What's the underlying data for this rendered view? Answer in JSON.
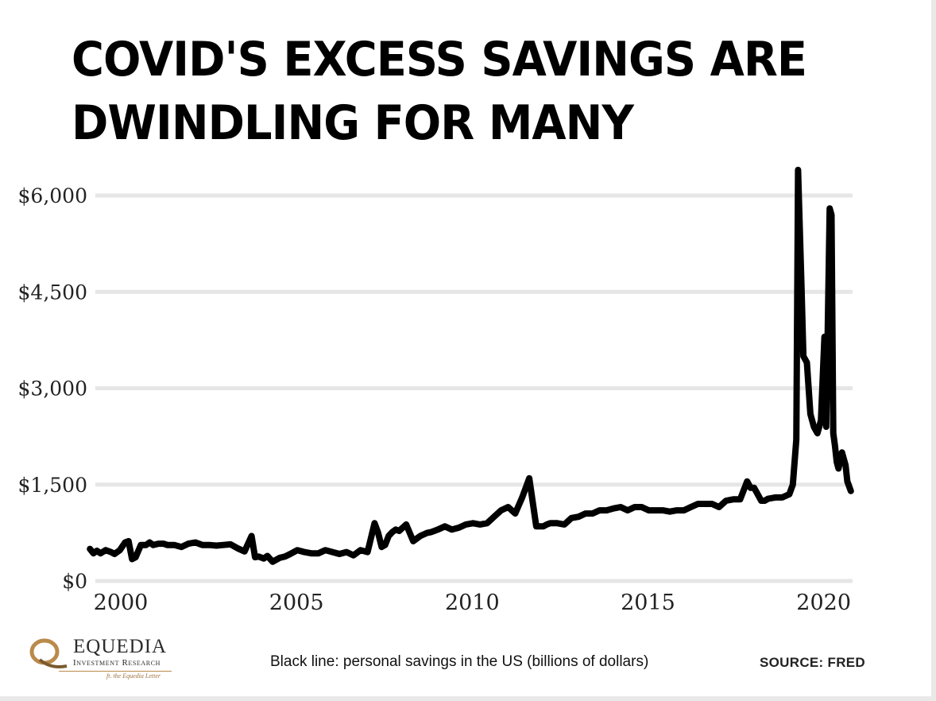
{
  "title": {
    "line1": "COVID'S EXCESS SAVINGS ARE",
    "line2": "DWINDLING FOR MANY"
  },
  "caption": "Black line: personal savings in the US (billions of dollars)",
  "source": "SOURCE:  FRED",
  "logo": {
    "name": "EQUEDIA",
    "subtitle": "Investment Research",
    "tagline": "ft. the Equedia Letter",
    "accent_color": "#b98a4a"
  },
  "chart_data": {
    "type": "line",
    "title": "COVID'S EXCESS SAVINGS ARE DWINDLING FOR MANY",
    "xlabel": "",
    "ylabel": "",
    "xlim": [
      2000,
      2021.5
    ],
    "ylim": [
      0,
      6000
    ],
    "x_ticks": [
      2000,
      2005,
      2010,
      2015,
      2020
    ],
    "x_tick_labels": [
      "2000",
      "2005",
      "2010",
      "2015",
      "2020"
    ],
    "y_ticks": [
      0,
      1500,
      3000,
      4500,
      6000
    ],
    "y_tick_labels": [
      "$0",
      "$1,500",
      "$3,000",
      "$4,500",
      "$6,000"
    ],
    "grid": "horizontal",
    "line_color": "#000000",
    "grid_color": "#e6e6e6",
    "series": [
      {
        "name": "",
        "x": [
          1999.8,
          1999.9,
          2000.0,
          2000.1,
          2000.25,
          2000.4,
          2000.5,
          2000.65,
          2000.8,
          2000.9,
          2001.0,
          2001.1,
          2001.25,
          2001.4,
          2001.5,
          2001.6,
          2001.75,
          2001.9,
          2002.0,
          2002.2,
          2002.4,
          2002.6,
          2002.8,
          2003.0,
          2003.2,
          2003.4,
          2003.6,
          2003.8,
          2004.0,
          2004.2,
          2004.4,
          2004.5,
          2004.6,
          2004.75,
          2004.85,
          2005.0,
          2005.2,
          2005.35,
          2005.5,
          2005.7,
          2005.9,
          2006.1,
          2006.3,
          2006.5,
          2006.7,
          2006.9,
          2007.1,
          2007.3,
          2007.5,
          2007.7,
          2007.9,
          2008.0,
          2008.1,
          2008.2,
          2008.3,
          2008.4,
          2008.5,
          2008.6,
          2008.8,
          2009.0,
          2009.2,
          2009.4,
          2009.5,
          2009.6,
          2009.7,
          2009.9,
          2010.1,
          2010.3,
          2010.5,
          2010.7,
          2010.9,
          2011.1,
          2011.3,
          2011.5,
          2011.7,
          2011.9,
          2012.1,
          2012.3,
          2012.5,
          2012.7,
          2012.8,
          2012.9,
          2013.0,
          2013.1,
          2013.3,
          2013.5,
          2013.7,
          2013.9,
          2014.1,
          2014.3,
          2014.5,
          2014.7,
          2014.9,
          2015.1,
          2015.3,
          2015.5,
          2015.7,
          2015.9,
          2016.1,
          2016.3,
          2016.5,
          2016.7,
          2016.9,
          2017.1,
          2017.3,
          2017.5,
          2017.7,
          2017.9,
          2018.1,
          2018.3,
          2018.5,
          2018.6,
          2018.7,
          2018.8,
          2018.9,
          2019.0,
          2019.1,
          2019.3,
          2019.5,
          2019.7,
          2019.8,
          2019.9,
          2019.95,
          2020.05,
          2020.1,
          2020.2,
          2020.3,
          2020.4,
          2020.5,
          2020.6,
          2020.7,
          2020.75,
          2020.85,
          2020.9,
          2020.95,
          2021.0,
          2021.05,
          2021.1,
          2021.2,
          2021.3,
          2021.35,
          2021.45
        ],
        "values": [
          500,
          430,
          470,
          430,
          480,
          450,
          420,
          480,
          600,
          620,
          340,
          370,
          560,
          560,
          600,
          560,
          580,
          580,
          560,
          560,
          530,
          580,
          600,
          560,
          560,
          550,
          560,
          570,
          510,
          460,
          700,
          370,
          380,
          350,
          390,
          300,
          360,
          380,
          420,
          480,
          450,
          430,
          430,
          480,
          450,
          420,
          450,
          400,
          480,
          450,
          900,
          750,
          530,
          560,
          700,
          760,
          800,
          780,
          880,
          620,
          700,
          750,
          760,
          780,
          800,
          850,
          800,
          830,
          880,
          900,
          880,
          900,
          1000,
          1100,
          1150,
          1050,
          1300,
          1600,
          850,
          850,
          880,
          900,
          900,
          900,
          880,
          980,
          1000,
          1050,
          1050,
          1100,
          1100,
          1130,
          1150,
          1100,
          1150,
          1150,
          1100,
          1100,
          1100,
          1080,
          1100,
          1100,
          1150,
          1200,
          1200,
          1200,
          1150,
          1250,
          1270,
          1270,
          1550,
          1450,
          1450,
          1350,
          1250,
          1250,
          1280,
          1300,
          1300,
          1350,
          1500,
          2200,
          6400,
          4500,
          3500,
          3400,
          2600,
          2400,
          2300,
          2500,
          3800,
          2400,
          5800,
          5700,
          2300,
          2100,
          1850,
          1750,
          2000,
          1800,
          1550,
          1400
        ]
      }
    ]
  }
}
